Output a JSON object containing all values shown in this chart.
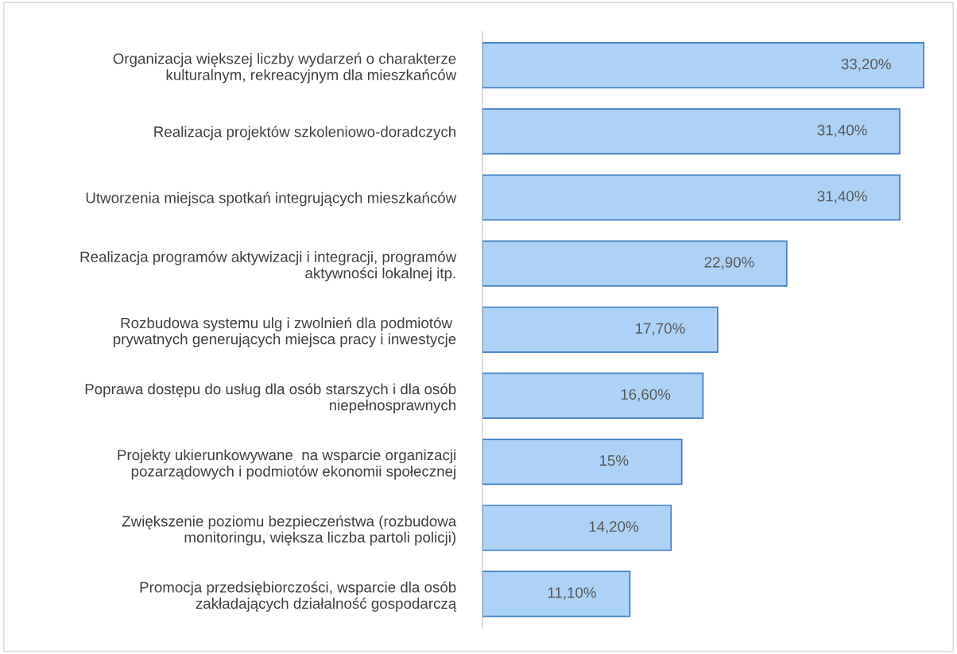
{
  "chart_data": {
    "type": "bar",
    "orientation": "horizontal",
    "categories": [
      "Organizacja większej liczby wydarzeń o charakterze\nkulturalnym, rekreacyjnym dla mieszkańców",
      "Realizacja projektów szkoleniowo-doradczych",
      "Utworzenia miejsca spotkań integrujących mieszkańców",
      "Realizacja programów aktywizacji i integracji, programów\naktywności lokalnej itp.",
      "Rozbudowa systemu ulg i zwolnień dla podmiotów \nprywatnych generujących miejsca pracy i inwestycje",
      "Poprawa dostępu do usług dla osób starszych i dla osób\nniepełnosprawnych",
      "Projekty ukierunkowywane  na wsparcie organizacji\npozarządowych i podmiotów ekonomii społecznej",
      "Zwiększenie poziomu bezpieczeństwa (rozbudowa\nmonitoringu, większa liczba partoli policji)",
      "Promocja przedsiębiorczości, wsparcie dla osób\nzakładających działalność gospodarczą"
    ],
    "values": [
      33.2,
      31.4,
      31.4,
      22.9,
      17.7,
      16.6,
      15,
      14.2,
      11.1
    ],
    "value_labels": [
      "33,20%",
      "31,40%",
      "31,40%",
      "22,90%",
      "17,70%",
      "16,60%",
      "15%",
      "14,20%",
      "11,10%"
    ],
    "color": "#acd2f7",
    "tick_labels": "y"
  }
}
